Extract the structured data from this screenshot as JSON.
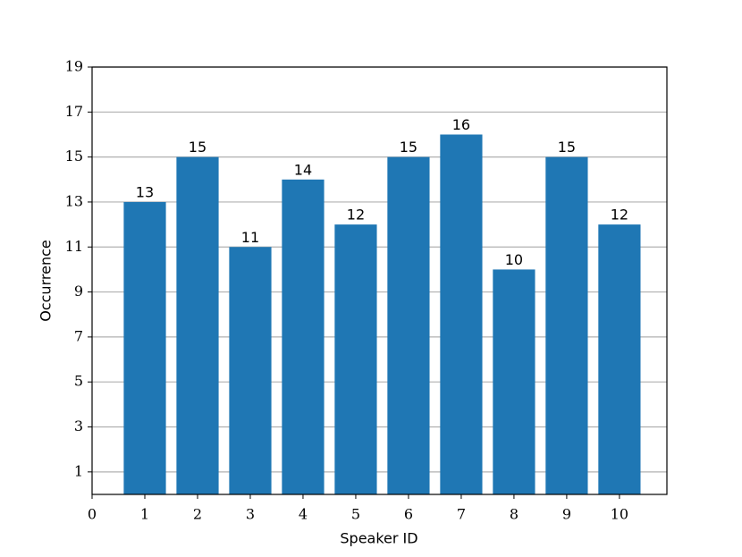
{
  "chart_data": {
    "type": "bar",
    "x": [
      1,
      2,
      3,
      4,
      5,
      6,
      7,
      8,
      9,
      10
    ],
    "values": [
      13,
      15,
      11,
      14,
      12,
      15,
      16,
      10,
      15,
      12
    ],
    "color": "#1f77b4",
    "xlabel": "Speaker ID",
    "ylabel": "Occurrence",
    "xlim": [
      0,
      10.9
    ],
    "xticks": [
      0,
      1,
      2,
      3,
      4,
      5,
      6,
      7,
      8,
      9,
      10
    ],
    "ylim": [
      0,
      19
    ],
    "yticks": [
      1,
      3,
      5,
      7,
      9,
      11,
      13,
      15,
      17,
      19
    ],
    "grid": true
  }
}
